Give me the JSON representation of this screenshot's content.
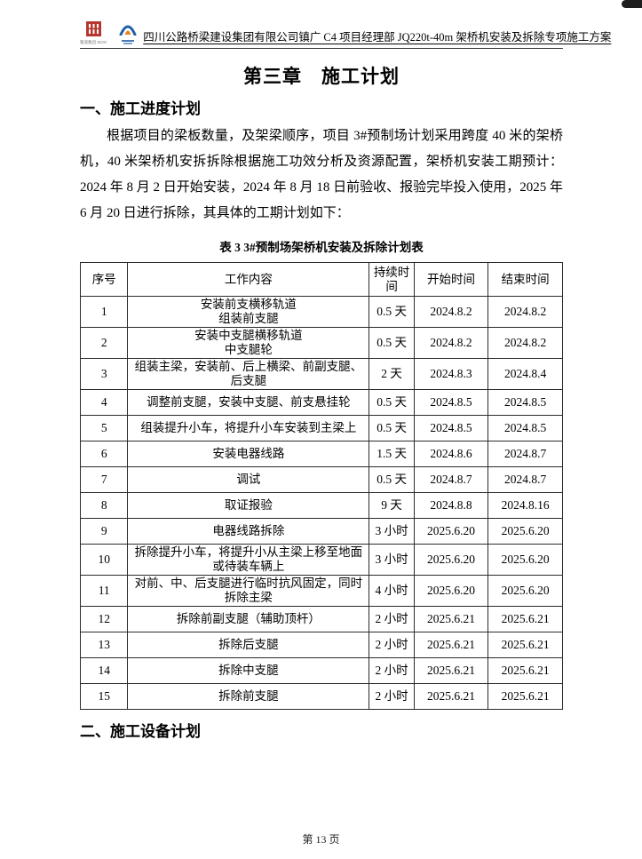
{
  "header": {
    "company": "四川公路桥梁建设集团有限公司",
    "doc_title": "镇广 C4 项目经理部 JQ220t-40m 架桥机安装及拆除专项施工方案",
    "left_logo_caption": "蜀道集团 SDIG",
    "icons": {
      "left_logo": "sdig-red-seal-logo",
      "right_logo": "spmb-blue-arch-logo"
    },
    "logo_colors": {
      "sdig_red": "#b5372f",
      "spmb_blue": "#1f5fa6",
      "spmb_orange": "#e8821e"
    }
  },
  "content": {
    "chapter_title": "第三章　施工计划",
    "section_progress": "一、施工进度计划",
    "paragraph": "根据项目的梁板数量，及架梁顺序，项目 3#预制场计划采用跨度 40 米的架桥机，40 米架桥机安拆拆除根据施工功效分析及资源配置，架桥机安装工期预计：2024 年 8 月 2 日开始安装，2024 年 8 月 18 日前验收、报验完毕投入使用，2025 年 6 月 20 日进行拆除，其具体的工期计划如下：",
    "table_caption": "表 3  3#预制场架桥机安装及拆除计划表",
    "section_equipment": "二、施工设备计划"
  },
  "table": {
    "headers": [
      "序号",
      "工作内容",
      "持续时间",
      "开始时间",
      "结束时间"
    ],
    "rows": [
      [
        "1",
        "安装前支横移轨道\n组装前支腿",
        "0.5 天",
        "2024.8.2",
        "2024.8.2"
      ],
      [
        "2",
        "安装中支腿横移轨道\n中支腿轮",
        "0.5 天",
        "2024.8.2",
        "2024.8.2"
      ],
      [
        "3",
        "组装主梁，安装前、后上横梁、前副支腿、\n后支腿",
        "2 天",
        "2024.8.3",
        "2024.8.4"
      ],
      [
        "4",
        "调整前支腿，安装中支腿、前支悬挂轮",
        "0.5 天",
        "2024.8.5",
        "2024.8.5"
      ],
      [
        "5",
        "组装提升小车，将提升小车安装到主梁上",
        "0.5 天",
        "2024.8.5",
        "2024.8.5"
      ],
      [
        "6",
        "安装电器线路",
        "1.5 天",
        "2024.8.6",
        "2024.8.7"
      ],
      [
        "7",
        "调试",
        "0.5 天",
        "2024.8.7",
        "2024.8.7"
      ],
      [
        "8",
        "取证报验",
        "9 天",
        "2024.8.8",
        "2024.8.16"
      ],
      [
        "9",
        "电器线路拆除",
        "3 小时",
        "2025.6.20",
        "2025.6.20"
      ],
      [
        "10",
        "拆除提升小车，将提升小从主梁上移至地面\n或待装车辆上",
        "3 小时",
        "2025.6.20",
        "2025.6.20"
      ],
      [
        "11",
        "对前、中、后支腿进行临时抗风固定，同时\n拆除主梁",
        "4 小时",
        "2025.6.20",
        "2025.6.20"
      ],
      [
        "12",
        "拆除前副支腿（辅助顶杆）",
        "2 小时",
        "2025.6.21",
        "2025.6.21"
      ],
      [
        "13",
        "拆除后支腿",
        "2 小时",
        "2025.6.21",
        "2025.6.21"
      ],
      [
        "14",
        "拆除中支腿",
        "2 小时",
        "2025.6.21",
        "2025.6.21"
      ],
      [
        "15",
        "拆除前支腿",
        "2 小时",
        "2025.6.21",
        "2025.6.21"
      ]
    ]
  },
  "footer": {
    "page_number": "第 13 页"
  }
}
